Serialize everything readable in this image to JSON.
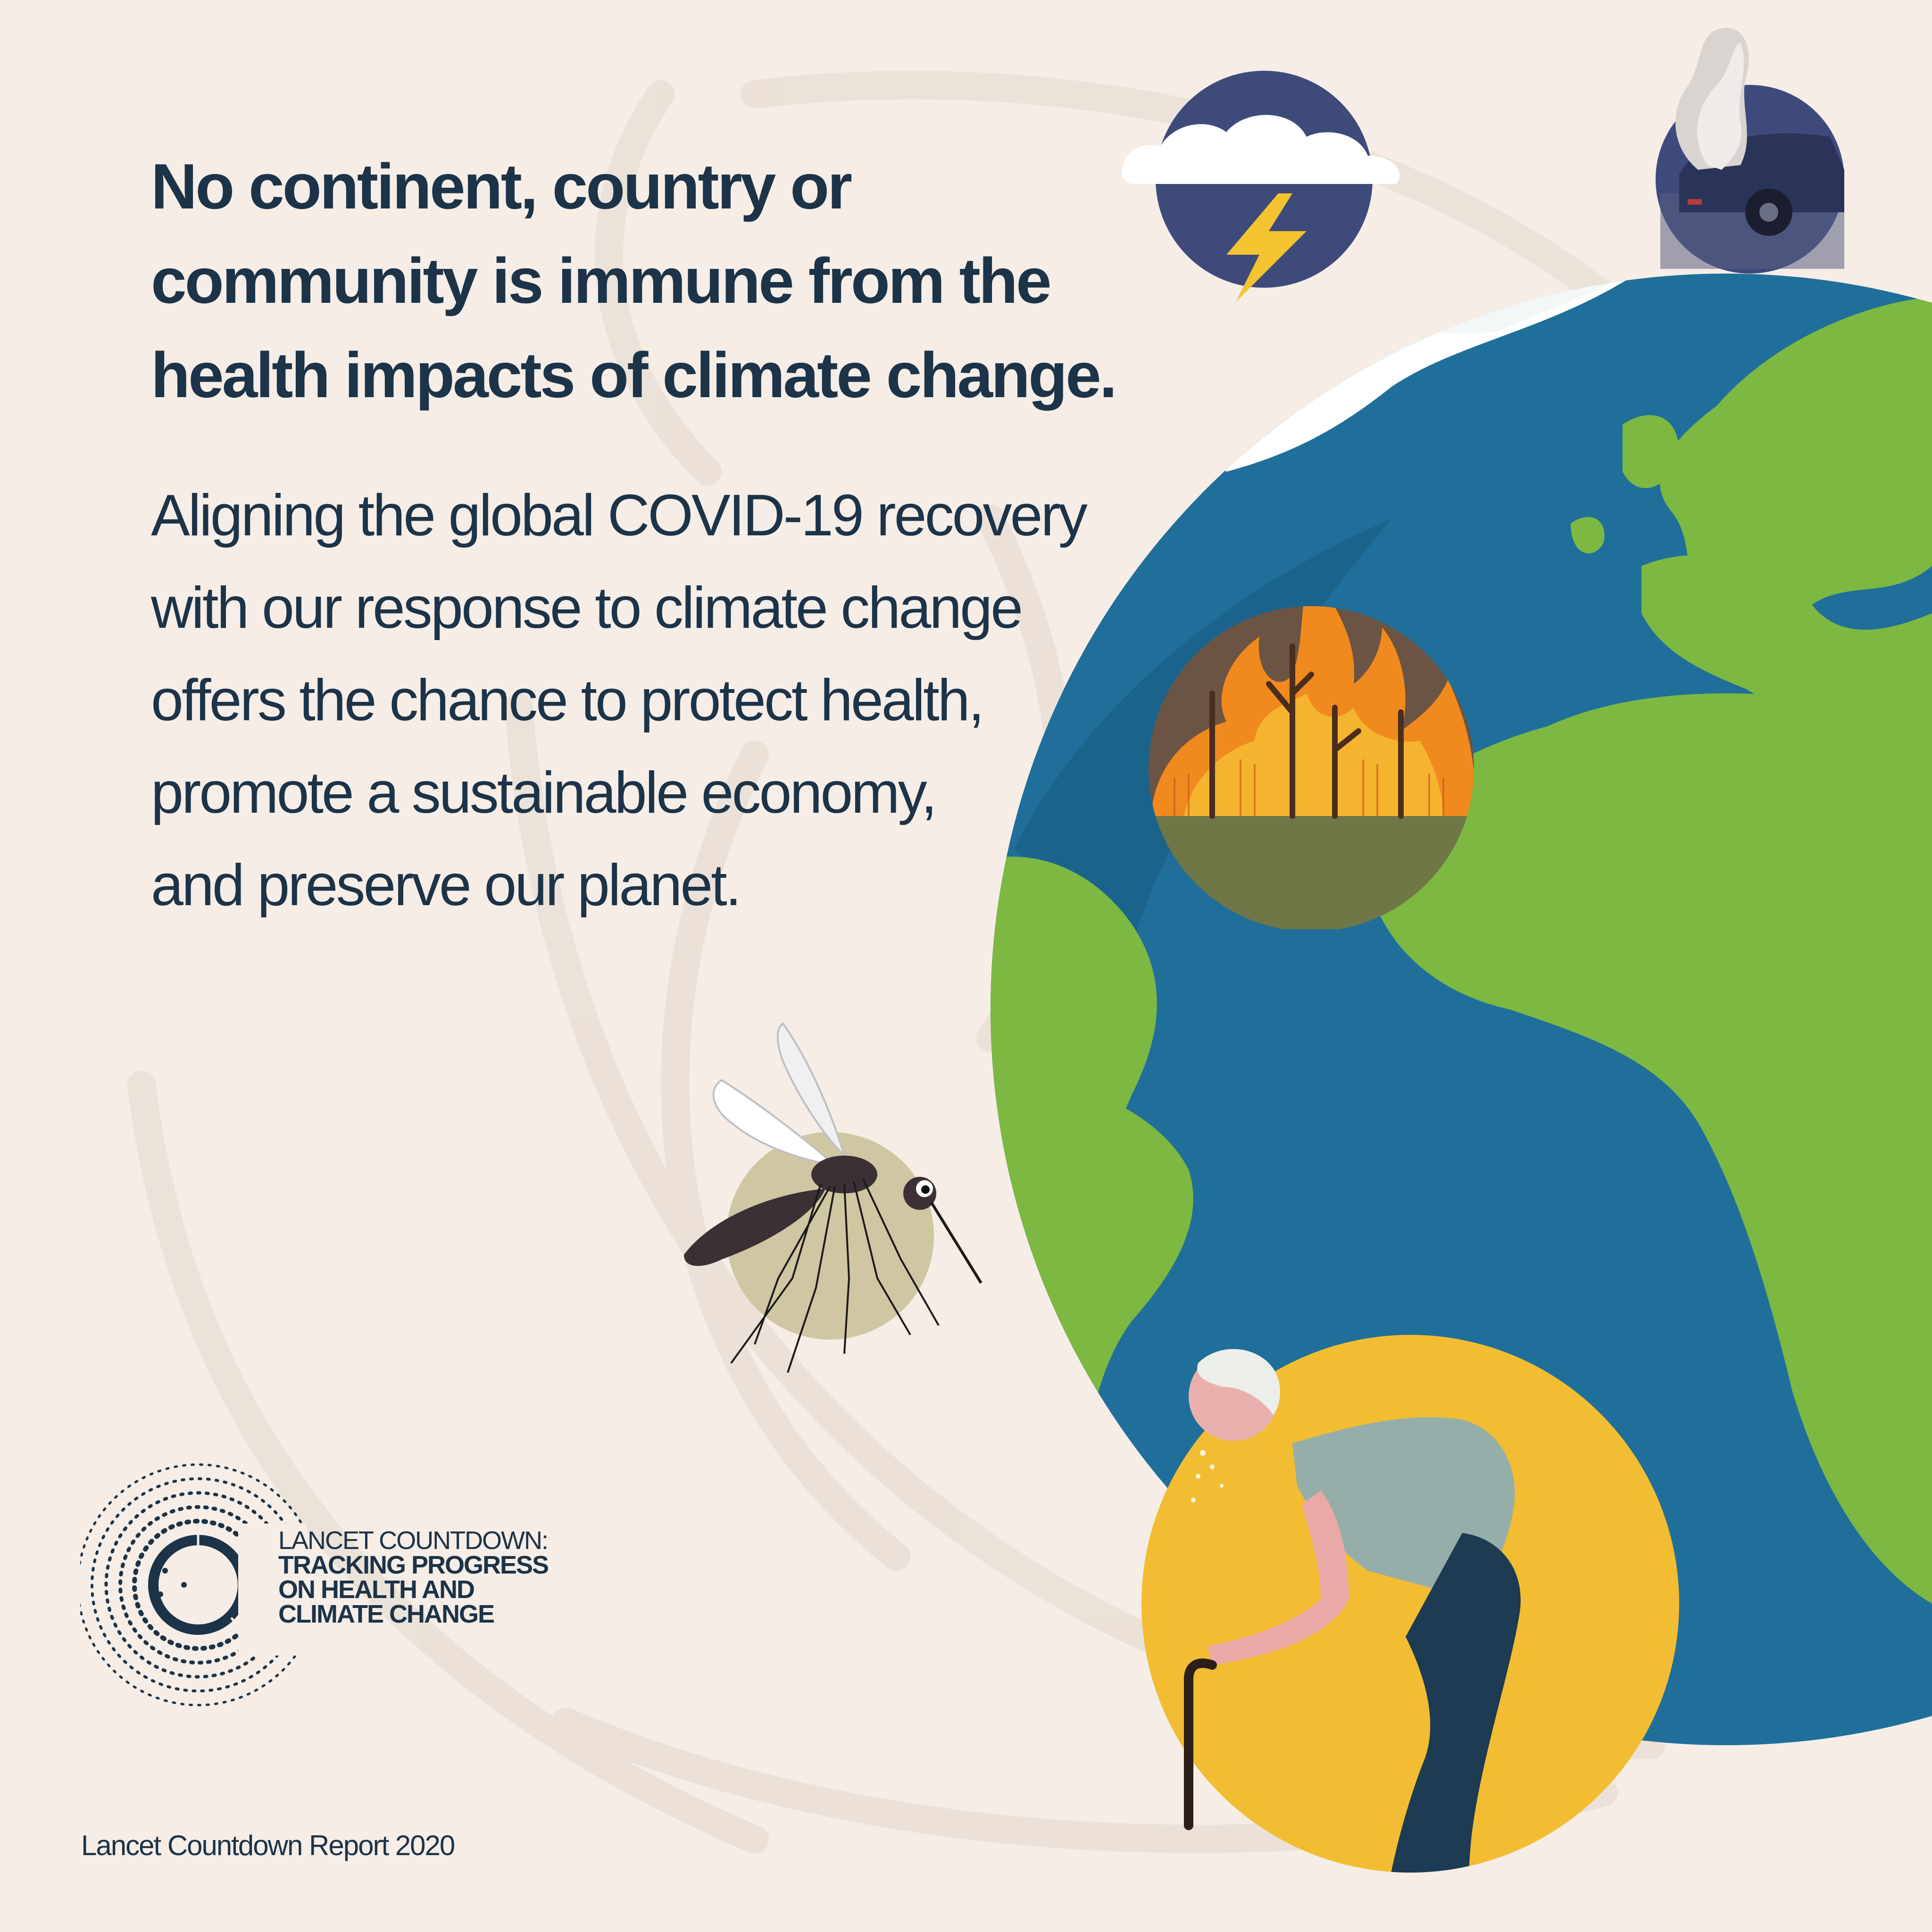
{
  "headline": {
    "lines": [
      "No continent, country or",
      "community is immune from the",
      "health impacts of climate change."
    ]
  },
  "body": {
    "lines": [
      "Aligning the global COVID-19 recovery",
      "with our response to climate change",
      "offers the chance to protect health,",
      "promote a sustainable economy,",
      "and preserve our planet."
    ]
  },
  "logo": {
    "line1": "LANCET COUNTDOWN:",
    "line2": "TRACKING PROGRESS",
    "line3": "ON HEALTH AND",
    "line4": "CLIMATE CHANGE"
  },
  "footer": "Lancet Countdown Report 2020",
  "illustrations": {
    "globe": "globe-icon",
    "storm": "storm-cloud-icon",
    "car": "car-exhaust-icon",
    "fire": "wildfire-icon",
    "mosquito": "mosquito-icon",
    "elderly": "elderly-man-heat-icon"
  },
  "colors": {
    "background": "#f5ede6",
    "text": "#1c3348",
    "ocean": "#1f6f9a",
    "land": "#7cb842",
    "sun": "#f2bd32",
    "fire": "#f08a1e"
  }
}
